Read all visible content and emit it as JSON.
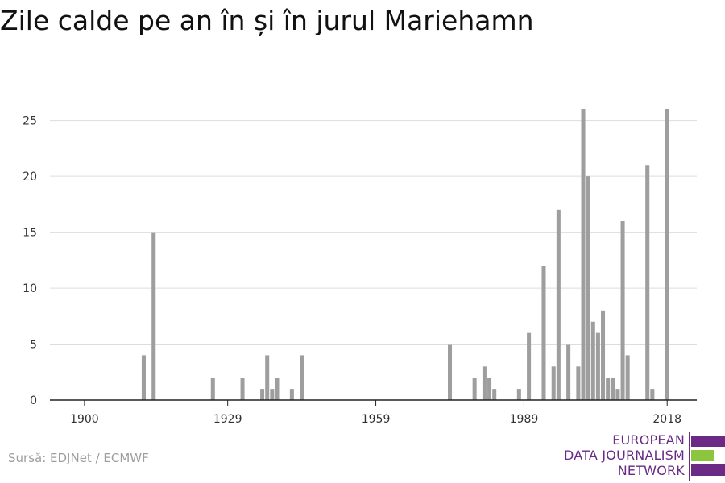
{
  "page": {
    "title": "Zile calde pe an în și în jurul Mariehamn",
    "source": "Sursă: EDJNet / ECMWF"
  },
  "logo": {
    "line1": "EUROPEAN",
    "line2": "DATA JOURNALISM",
    "line3": "NETWORK",
    "purple": "#6a2a86",
    "green": "#8cc63f"
  },
  "chart_data": {
    "type": "bar",
    "title": "Zile calde pe an în și în jurul Mariehamn",
    "xlabel": "",
    "ylabel": "",
    "xlim": [
      1893,
      2024
    ],
    "ylim": [
      0,
      28
    ],
    "x_ticks": [
      1900,
      1929,
      1959,
      1989,
      2018
    ],
    "y_ticks": [
      0,
      5,
      10,
      15,
      20,
      25
    ],
    "grid": true,
    "bar_color": "#9e9e9e",
    "series": [
      {
        "x": [
          1912,
          1914,
          1926,
          1932,
          1936,
          1937,
          1938,
          1939,
          1942,
          1944,
          1974,
          1979,
          1981,
          1982,
          1983,
          1988,
          1990,
          1993,
          1995,
          1996,
          1998,
          2000,
          2001,
          2002,
          2003,
          2004,
          2005,
          2006,
          2007,
          2008,
          2009,
          2010,
          2014,
          2015,
          2018
        ],
        "values": [
          4,
          15,
          2,
          2,
          1,
          4,
          1,
          2,
          1,
          4,
          5,
          2,
          3,
          2,
          1,
          1,
          6,
          12,
          3,
          17,
          5,
          3,
          26,
          20,
          7,
          6,
          8,
          2,
          2,
          1,
          16,
          4,
          21,
          1,
          26
        ]
      }
    ]
  }
}
